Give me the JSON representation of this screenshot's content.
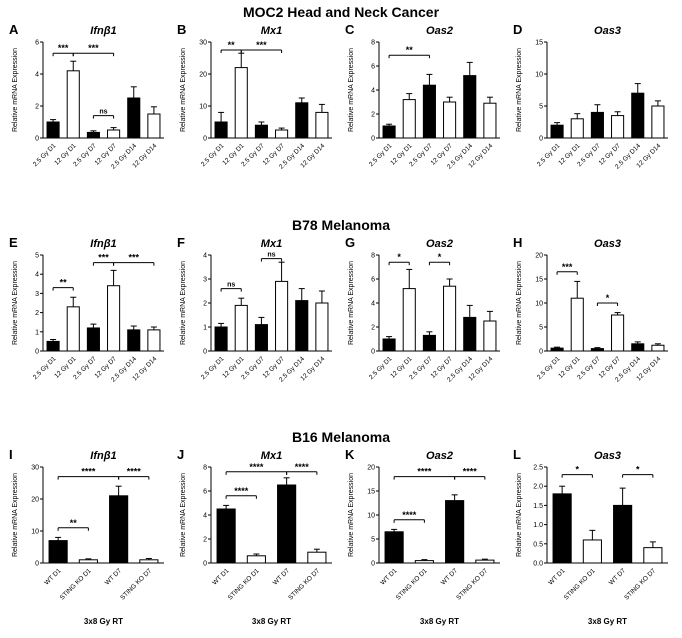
{
  "figure": {
    "sections": [
      {
        "title": "MOC2 Head and Neck Cancer"
      },
      {
        "title": "B78 Melanoma"
      },
      {
        "title": "B16 Melanoma"
      }
    ]
  },
  "chart_data": [
    {
      "type": "bar",
      "panel": "A",
      "row": 0,
      "title": "Ifnβ1",
      "ylabel": "Relative mRNA Expression",
      "ylim": [
        0,
        6
      ],
      "yticks": [
        0,
        2,
        4,
        6
      ],
      "categories": [
        "2.5 Gy D1",
        "12 Gy D1",
        "2.5 Gy D7",
        "12 Gy D7",
        "2.5 Gy D14",
        "12 Gy D14"
      ],
      "values": [
        1.0,
        4.2,
        0.35,
        0.5,
        2.5,
        1.5
      ],
      "errors": [
        0.15,
        0.6,
        0.1,
        0.15,
        0.7,
        0.45
      ],
      "bar_colors": [
        "#000000",
        "#ffffff",
        "#000000",
        "#ffffff",
        "#000000",
        "#ffffff"
      ],
      "significance": [
        {
          "x1": 0,
          "x2": 1,
          "label": "***",
          "y": 5.3
        },
        {
          "x1": 1,
          "x2": 3,
          "label": "***",
          "y": 5.3
        },
        {
          "x1": 2,
          "x2": 3,
          "label": "ns",
          "y": 1.4
        }
      ]
    },
    {
      "type": "bar",
      "panel": "B",
      "row": 0,
      "title": "Mx1",
      "ylabel": "Relative mRNA Expression",
      "ylim": [
        0,
        30
      ],
      "yticks": [
        0,
        10,
        20,
        30
      ],
      "categories": [
        "2.5 Gy D1",
        "12 Gy D1",
        "2.5 Gy D7",
        "12 Gy D7",
        "2.5 Gy D14",
        "12 Gy D14"
      ],
      "values": [
        5,
        22,
        4,
        2.5,
        11,
        8
      ],
      "errors": [
        3,
        4.5,
        1,
        0.6,
        1.5,
        2.5
      ],
      "bar_colors": [
        "#000000",
        "#ffffff",
        "#000000",
        "#ffffff",
        "#000000",
        "#ffffff"
      ],
      "significance": [
        {
          "x1": 0,
          "x2": 1,
          "label": "**",
          "y": 27.5
        },
        {
          "x1": 1,
          "x2": 3,
          "label": "***",
          "y": 27.5
        }
      ]
    },
    {
      "type": "bar",
      "panel": "C",
      "row": 0,
      "title": "Oas2",
      "ylabel": "Relative mRNA Expression",
      "ylim": [
        0,
        8
      ],
      "yticks": [
        0,
        2,
        4,
        6,
        8
      ],
      "categories": [
        "2.5 Gy D1",
        "12 Gy D1",
        "2.5 Gy D7",
        "12 Gy D7",
        "2.5 Gy D14",
        "12 Gy D14"
      ],
      "values": [
        1.0,
        3.2,
        4.4,
        3.0,
        5.2,
        2.9
      ],
      "errors": [
        0.15,
        0.5,
        0.9,
        0.4,
        1.1,
        0.5
      ],
      "bar_colors": [
        "#000000",
        "#ffffff",
        "#000000",
        "#ffffff",
        "#000000",
        "#ffffff"
      ],
      "significance": [
        {
          "x1": 0,
          "x2": 2,
          "label": "**",
          "y": 6.9
        }
      ]
    },
    {
      "type": "bar",
      "panel": "D",
      "row": 0,
      "title": "Oas3",
      "ylabel": "Relative mRNA Expression",
      "ylim": [
        0,
        15
      ],
      "yticks": [
        0,
        5,
        10,
        15
      ],
      "categories": [
        "2.5 Gy D1",
        "12 Gy D1",
        "2.5 Gy D7",
        "12 Gy D7",
        "2.5 Gy D14",
        "12 Gy D14"
      ],
      "values": [
        2.0,
        3.0,
        4.0,
        3.5,
        7.0,
        5.0
      ],
      "errors": [
        0.4,
        0.8,
        1.2,
        0.6,
        1.5,
        0.8
      ],
      "bar_colors": [
        "#000000",
        "#ffffff",
        "#000000",
        "#ffffff",
        "#000000",
        "#ffffff"
      ],
      "significance": []
    },
    {
      "type": "bar",
      "panel": "E",
      "row": 1,
      "title": "Ifnβ1",
      "ylabel": "Relative mRNA Expression",
      "ylim": [
        0,
        5
      ],
      "yticks": [
        0,
        1,
        2,
        3,
        4,
        5
      ],
      "categories": [
        "2.5 Gy D1",
        "12 Gy D1",
        "2.5 Gy D7",
        "12 Gy D7",
        "2.5 Gy D14",
        "12 Gy D14"
      ],
      "values": [
        0.5,
        2.3,
        1.2,
        3.4,
        1.1,
        1.1
      ],
      "errors": [
        0.1,
        0.5,
        0.2,
        0.8,
        0.2,
        0.15
      ],
      "bar_colors": [
        "#000000",
        "#ffffff",
        "#000000",
        "#ffffff",
        "#000000",
        "#ffffff"
      ],
      "significance": [
        {
          "x1": 0,
          "x2": 1,
          "label": "**",
          "y": 3.3
        },
        {
          "x1": 2,
          "x2": 3,
          "label": "***",
          "y": 4.6
        },
        {
          "x1": 3,
          "x2": 5,
          "label": "***",
          "y": 4.6
        }
      ]
    },
    {
      "type": "bar",
      "panel": "F",
      "row": 1,
      "title": "Mx1",
      "ylabel": "Relative mRNA Expression",
      "ylim": [
        0,
        4
      ],
      "yticks": [
        0,
        1,
        2,
        3,
        4
      ],
      "categories": [
        "2.5 Gy D1",
        "12 Gy D1",
        "2.5 Gy D7",
        "12 Gy D7",
        "2.5 Gy D14",
        "12 Gy D14"
      ],
      "values": [
        1.0,
        1.9,
        1.1,
        2.9,
        2.1,
        2.0
      ],
      "errors": [
        0.15,
        0.3,
        0.3,
        0.8,
        0.5,
        0.5
      ],
      "bar_colors": [
        "#000000",
        "#ffffff",
        "#000000",
        "#ffffff",
        "#000000",
        "#ffffff"
      ],
      "significance": [
        {
          "x1": 0,
          "x2": 1,
          "label": "ns",
          "y": 2.6
        },
        {
          "x1": 2,
          "x2": 3,
          "label": "ns",
          "y": 3.85
        }
      ]
    },
    {
      "type": "bar",
      "panel": "G",
      "row": 1,
      "title": "Oas2",
      "ylabel": "Relative mRNA Expression",
      "ylim": [
        0,
        8
      ],
      "yticks": [
        0,
        2,
        4,
        6,
        8
      ],
      "categories": [
        "2.5 Gy D1",
        "12 Gy D1",
        "2.5 Gy D7",
        "12 Gy D7",
        "2.5 Gy D14",
        "12 Gy D14"
      ],
      "values": [
        1.0,
        5.2,
        1.3,
        5.4,
        2.8,
        2.5
      ],
      "errors": [
        0.2,
        1.6,
        0.3,
        0.6,
        1.0,
        0.8
      ],
      "bar_colors": [
        "#000000",
        "#ffffff",
        "#000000",
        "#ffffff",
        "#000000",
        "#ffffff"
      ],
      "significance": [
        {
          "x1": 0,
          "x2": 1,
          "label": "*",
          "y": 7.4
        },
        {
          "x1": 2,
          "x2": 3,
          "label": "*",
          "y": 7.4
        }
      ]
    },
    {
      "type": "bar",
      "panel": "H",
      "row": 1,
      "title": "Oas3",
      "ylabel": "Relative mRNA Expression",
      "ylim": [
        0,
        20
      ],
      "yticks": [
        0,
        5,
        10,
        15,
        20
      ],
      "categories": [
        "2.5 Gy D1",
        "12 Gy D1",
        "2.5 Gy D7",
        "12 Gy D7",
        "2.5 Gy D14",
        "12 Gy D14"
      ],
      "values": [
        0.6,
        11.0,
        0.5,
        7.5,
        1.5,
        1.2
      ],
      "errors": [
        0.2,
        3.5,
        0.2,
        0.5,
        0.4,
        0.3
      ],
      "bar_colors": [
        "#000000",
        "#ffffff",
        "#000000",
        "#ffffff",
        "#000000",
        "#ffffff"
      ],
      "significance": [
        {
          "x1": 0,
          "x2": 1,
          "label": "***",
          "y": 16.5
        },
        {
          "x1": 2,
          "x2": 3,
          "label": "*",
          "y": 10.0
        }
      ]
    },
    {
      "type": "bar",
      "panel": "I",
      "row": 2,
      "title": "Ifnβ1",
      "ylabel": "Relative mRNA Expression",
      "xlabel": "3x8 Gy RT",
      "ylim": [
        0,
        30
      ],
      "yticks": [
        0,
        10,
        20,
        30
      ],
      "categories": [
        "WT D1",
        "STING KO D1",
        "WT D7",
        "STING KO D7"
      ],
      "values": [
        7.0,
        1.0,
        21.0,
        1.0
      ],
      "errors": [
        1.0,
        0.3,
        3.0,
        0.4
      ],
      "bar_colors": [
        "#000000",
        "#ffffff",
        "#000000",
        "#ffffff"
      ],
      "significance": [
        {
          "x1": 0,
          "x2": 1,
          "label": "**",
          "y": 11.0
        },
        {
          "x1": 0,
          "x2": 2,
          "label": "****",
          "y": 27.0
        },
        {
          "x1": 2,
          "x2": 3,
          "label": "****",
          "y": 27.0
        }
      ]
    },
    {
      "type": "bar",
      "panel": "J",
      "row": 2,
      "title": "Mx1",
      "ylabel": "Relative mRNA Expression",
      "xlabel": "3x8 Gy RT",
      "ylim": [
        0,
        8
      ],
      "yticks": [
        0,
        2,
        4,
        6,
        8
      ],
      "categories": [
        "WT D1",
        "STING KO D1",
        "WT D7",
        "STING KO D7"
      ],
      "values": [
        4.5,
        0.6,
        6.5,
        0.9
      ],
      "errors": [
        0.3,
        0.15,
        0.6,
        0.25
      ],
      "bar_colors": [
        "#000000",
        "#ffffff",
        "#000000",
        "#ffffff"
      ],
      "significance": [
        {
          "x1": 0,
          "x2": 1,
          "label": "****",
          "y": 5.6
        },
        {
          "x1": 0,
          "x2": 2,
          "label": "****",
          "y": 7.6
        },
        {
          "x1": 2,
          "x2": 3,
          "label": "****",
          "y": 7.6
        }
      ]
    },
    {
      "type": "bar",
      "panel": "K",
      "row": 2,
      "title": "Oas2",
      "ylabel": "Relative mRNA Expression",
      "xlabel": "3x8 Gy RT",
      "ylim": [
        0,
        20
      ],
      "yticks": [
        0,
        5,
        10,
        15,
        20
      ],
      "categories": [
        "WT D1",
        "STING KO D1",
        "WT D7",
        "STING KO D7"
      ],
      "values": [
        6.5,
        0.5,
        13.0,
        0.6
      ],
      "errors": [
        0.5,
        0.2,
        1.2,
        0.2
      ],
      "bar_colors": [
        "#000000",
        "#ffffff",
        "#000000",
        "#ffffff"
      ],
      "significance": [
        {
          "x1": 0,
          "x2": 1,
          "label": "****",
          "y": 9.0
        },
        {
          "x1": 0,
          "x2": 2,
          "label": "****",
          "y": 18.0
        },
        {
          "x1": 2,
          "x2": 3,
          "label": "****",
          "y": 18.0
        }
      ]
    },
    {
      "type": "bar",
      "panel": "L",
      "row": 2,
      "title": "Oas3",
      "ylabel": "Relative mRNA Expression",
      "xlabel": "3x8 Gy RT",
      "ylim": [
        0,
        2.5
      ],
      "yticks": [
        0,
        0.5,
        1.0,
        1.5,
        2.0,
        2.5
      ],
      "categories": [
        "WT D1",
        "STING KO D1",
        "WT D7",
        "STING KO D7"
      ],
      "values": [
        1.8,
        0.6,
        1.5,
        0.4
      ],
      "errors": [
        0.2,
        0.25,
        0.45,
        0.15
      ],
      "bar_colors": [
        "#000000",
        "#ffffff",
        "#000000",
        "#ffffff"
      ],
      "significance": [
        {
          "x1": 0,
          "x2": 1,
          "label": "*",
          "y": 2.3
        },
        {
          "x1": 2,
          "x2": 3,
          "label": "*",
          "y": 2.3
        }
      ]
    }
  ]
}
